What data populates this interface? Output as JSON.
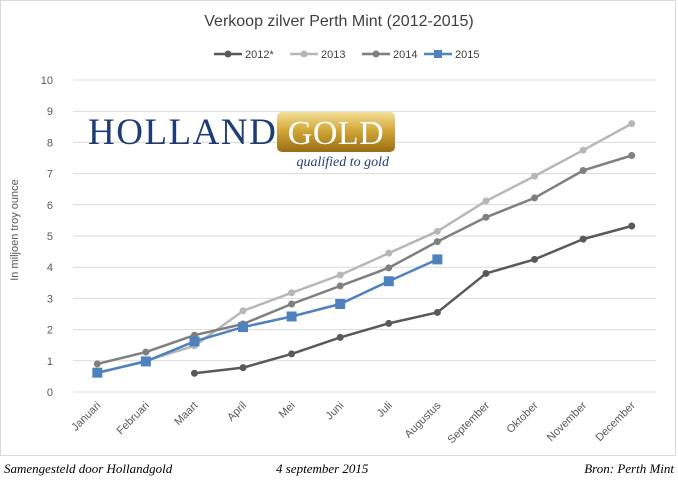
{
  "chart_data": {
    "type": "line",
    "title": "Verkoop zilver Perth Mint (2012-2015)",
    "xlabel": "",
    "ylabel": "In miljoen troy ounce",
    "ylim": [
      0,
      10
    ],
    "yticks": [
      "0",
      "1",
      "2",
      "3",
      "4",
      "5",
      "6",
      "7",
      "8",
      "9",
      "10"
    ],
    "categories": [
      "Januari",
      "Februari",
      "Maart",
      "April",
      "Mei",
      "Juni",
      "Juli",
      "Augustus",
      "September",
      "Oktober",
      "November",
      "December"
    ],
    "grid": true,
    "legend_position": "top",
    "series": [
      {
        "name": "2012*",
        "color": "#595959",
        "marker": "circle",
        "values": [
          null,
          null,
          0.6,
          0.78,
          1.22,
          1.75,
          2.2,
          2.55,
          3.8,
          4.25,
          4.9,
          5.32
        ]
      },
      {
        "name": "2013",
        "color": "#b7b7b7",
        "marker": "circle",
        "values": [
          0.6,
          1.0,
          1.48,
          2.6,
          3.18,
          3.75,
          4.45,
          5.15,
          6.12,
          6.92,
          7.75,
          8.6
        ]
      },
      {
        "name": "2014",
        "color": "#7f7f7f",
        "marker": "circle",
        "values": [
          0.9,
          1.28,
          1.82,
          2.18,
          2.82,
          3.4,
          3.98,
          4.82,
          5.6,
          6.22,
          7.1,
          7.58
        ]
      },
      {
        "name": "2015",
        "color": "#4f81bd",
        "marker": "square",
        "values": [
          0.62,
          0.98,
          1.62,
          2.08,
          2.42,
          2.82,
          3.55,
          4.25,
          null,
          null,
          null,
          null
        ]
      }
    ]
  },
  "logo": {
    "word_holland": "HOLLAND",
    "word_gold": "GOLD",
    "tagline": "qualified to gold"
  },
  "footer": {
    "left": "Samengesteld door Hollandgold",
    "center": "4 september 2015",
    "right": "Bron: Perth Mint"
  }
}
